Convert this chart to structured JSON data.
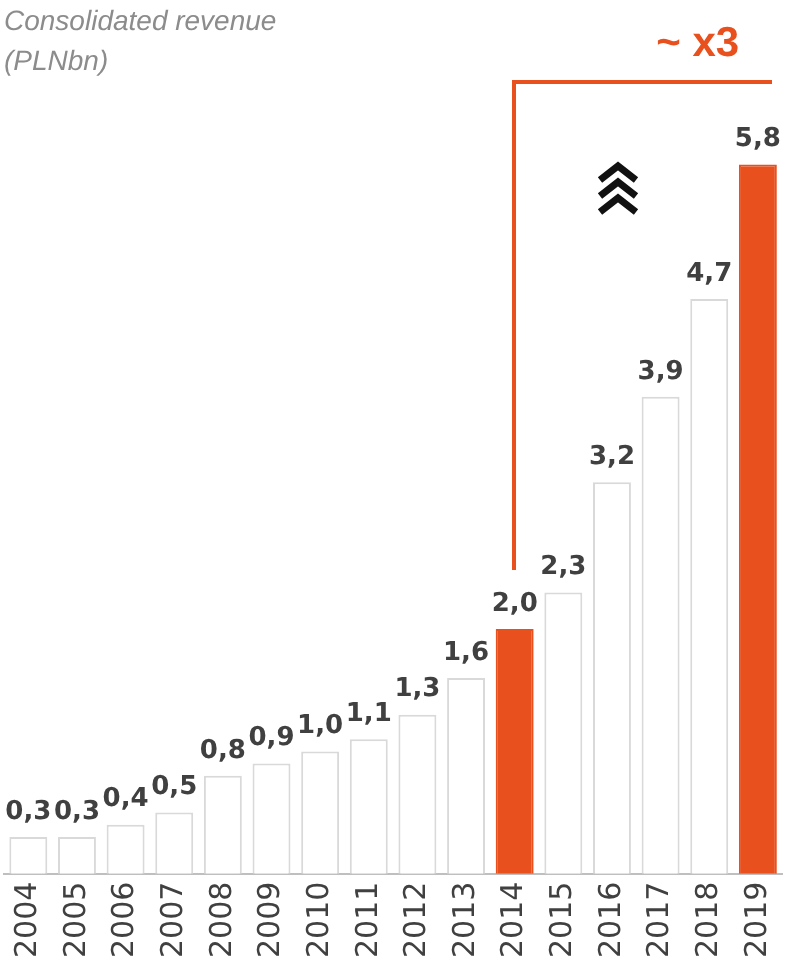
{
  "chart_data": {
    "type": "bar",
    "title": "Consolidated revenue (PLNbn)",
    "categories": [
      "2004",
      "2005",
      "2006",
      "2007",
      "2008",
      "2009",
      "2010",
      "2011",
      "2012",
      "2013",
      "2014",
      "2015",
      "2016",
      "2017",
      "2018",
      "2019"
    ],
    "values": [
      0.3,
      0.3,
      0.4,
      0.5,
      0.8,
      0.9,
      1.0,
      1.1,
      1.3,
      1.6,
      2.0,
      2.3,
      3.2,
      3.9,
      4.7,
      5.8
    ],
    "colors": [
      "#ffffff",
      "#ffffff",
      "#ffffff",
      "#ffffff",
      "#ffffff",
      "#ffffff",
      "#ffffff",
      "#ffffff",
      "#ffffff",
      "#ffffff",
      "#e8501e",
      "#ffffff",
      "#ffffff",
      "#ffffff",
      "#ffffff",
      "#e8501e"
    ],
    "value_labels": [
      "0,3",
      "0,3",
      "0,4",
      "0,5",
      "0,8",
      "0,9",
      "1,0",
      "1,1",
      "1,3",
      "1,6",
      "2,0",
      "2,3",
      "3,2",
      "3,9",
      "4,7",
      "5,8"
    ],
    "annotations": [
      "~ x3"
    ],
    "grid": false,
    "legend": false,
    "tick_labels": "x"
  }
}
